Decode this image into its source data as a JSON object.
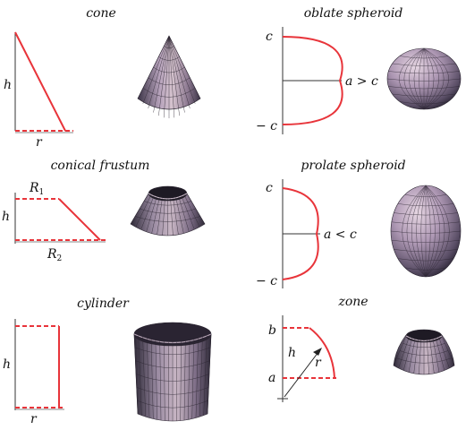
{
  "colors": {
    "profile": "#e8343a",
    "axis": "#333333",
    "surface_light": "#b8a4bc",
    "surface_dark": "#3a3442",
    "mesh": "#2a2430"
  },
  "panels": {
    "cone": {
      "title": "cone",
      "labels": {
        "h": "h",
        "r": "r"
      }
    },
    "oblate": {
      "title": "oblate spheroid",
      "labels": {
        "c_top": "c",
        "c_bottom": "− c",
        "relation": "a > c"
      }
    },
    "frustum": {
      "title": "conical frustum",
      "labels": {
        "h": "h",
        "R1_main": "R",
        "R1_sub": "1",
        "R2_main": "R",
        "R2_sub": "2"
      }
    },
    "prolate": {
      "title": "prolate spheroid",
      "labels": {
        "c_top": "c",
        "c_bottom": "− c",
        "relation": "a < c"
      }
    },
    "cylinder": {
      "title": "cylinder",
      "labels": {
        "h": "h",
        "r": "r"
      }
    },
    "zone": {
      "title": "zone",
      "labels": {
        "b": "b",
        "a": "a",
        "h": "h",
        "r": "r"
      }
    }
  }
}
